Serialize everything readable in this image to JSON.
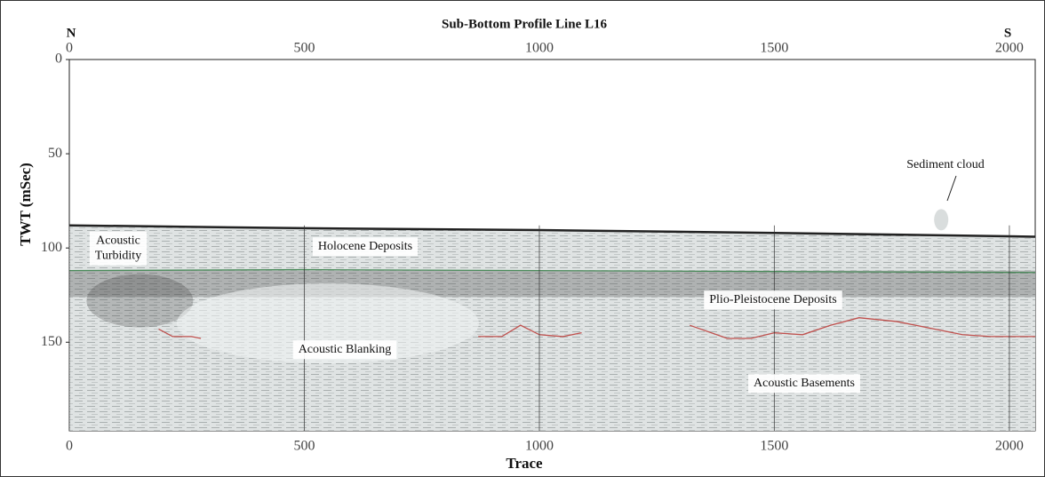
{
  "chart_data": {
    "type": "profile",
    "title": "Sub-Bottom Profile Line L16",
    "left_label": "N",
    "right_label": "S",
    "x_label": "Trace",
    "y_label": "TWT (mSec)",
    "xlim": [
      0,
      2055
    ],
    "ylim": [
      0,
      197
    ],
    "xticks": [
      0,
      500,
      1000,
      1500,
      2000
    ],
    "yticks": [
      0,
      50,
      100,
      150
    ],
    "y_inverted": true,
    "grid": "x",
    "series": [
      {
        "color": "#222222",
        "x": [
          0,
          500,
          1000,
          1500,
          2055
        ],
        "values": [
          88,
          89.5,
          90.5,
          92,
          94
        ]
      },
      {
        "color": "#4a8a5a",
        "x": [
          0,
          500,
          1000,
          1500,
          2055
        ],
        "values": [
          112,
          111.5,
          112,
          112.5,
          113
        ]
      },
      {
        "color": "#c0504d",
        "x": [
          190,
          220,
          260,
          280,
          null,
          870,
          920,
          960,
          1000,
          1050,
          1090,
          null,
          1320,
          1400,
          1450,
          1500,
          1560,
          1620,
          1680,
          1760,
          1840,
          1900,
          1960,
          2055
        ],
        "values": [
          143,
          147,
          147,
          148,
          null,
          147,
          147,
          141,
          146,
          147,
          145,
          null,
          141,
          148,
          148,
          145,
          146,
          141,
          137,
          139,
          143,
          146,
          147,
          147
        ]
      }
    ],
    "annotations": [
      "Acoustic Turbidity",
      "Holocene Deposits",
      "Plio-Pleistocene Deposits",
      "Acoustic Blanking",
      "Acoustic Basements",
      "Sediment cloud"
    ]
  }
}
